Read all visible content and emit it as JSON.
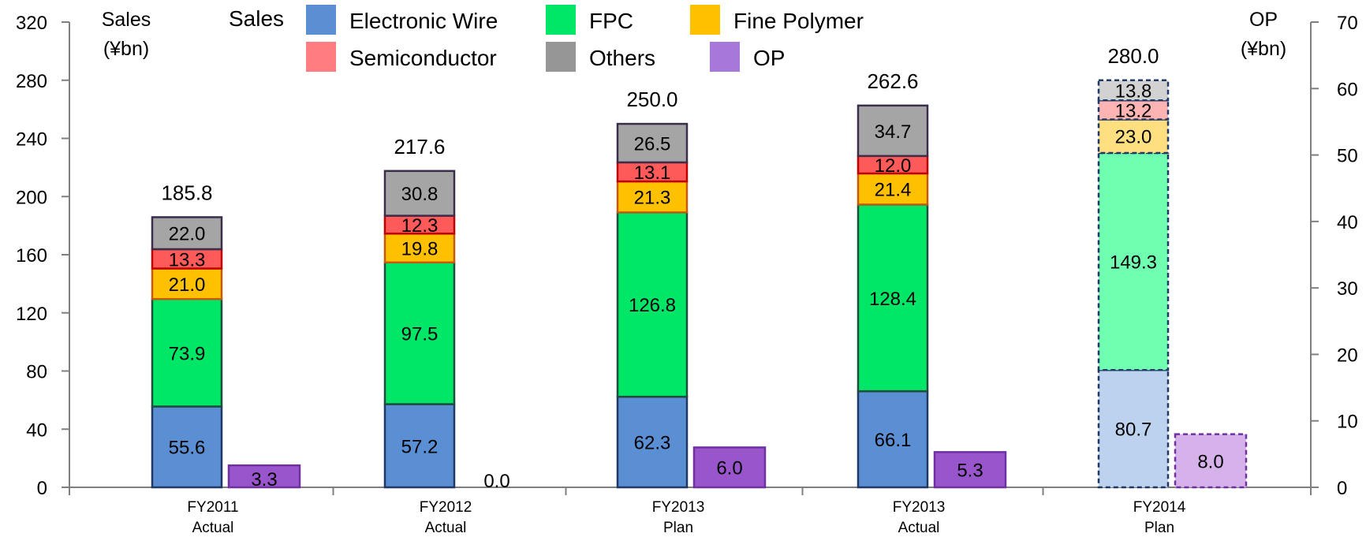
{
  "chart_data": {
    "type": "bar",
    "stacked": true,
    "categories": [
      {
        "line1": "FY2011",
        "line2": "Actual"
      },
      {
        "line1": "FY2012",
        "line2": "Actual"
      },
      {
        "line1": "FY2013",
        "line2": "Plan"
      },
      {
        "line1": "FY2013",
        "line2": "Actual"
      },
      {
        "line1": "FY2014",
        "line2": "Plan"
      }
    ],
    "plan_flags": [
      false,
      false,
      false,
      false,
      true
    ],
    "series": [
      {
        "name": "Electronic Wire",
        "color": "#5a8fd4",
        "plan_color": "#bcd2ee",
        "values": [
          55.6,
          57.2,
          62.3,
          66.1,
          80.7
        ],
        "labels": [
          "55.6",
          "57.2",
          "62.3",
          "66.1",
          "80.7"
        ]
      },
      {
        "name": "FPC",
        "color": "#00e667",
        "plan_color": "#70ffb0",
        "values": [
          73.9,
          97.5,
          126.8,
          128.4,
          149.3
        ],
        "labels": [
          "73.9",
          "97.5",
          "126.8",
          "128.4",
          "149.3"
        ]
      },
      {
        "name": "Fine Polymer",
        "color": "#ffc000",
        "plan_color": "#ffdf80",
        "values": [
          21.0,
          19.8,
          21.3,
          21.4,
          23.0
        ],
        "labels": [
          "21.0",
          "19.8",
          "21.3",
          "21.4",
          "23.0"
        ]
      },
      {
        "name": "Semiconductor",
        "color": "#ff5a5a",
        "plan_color": "#ffb4b4",
        "values": [
          13.3,
          12.3,
          13.1,
          12.0,
          13.2
        ],
        "labels": [
          "13.3",
          "12.3",
          "13.1",
          "12.0",
          "13.2"
        ]
      },
      {
        "name": "Others",
        "color": "#a5a5a5",
        "plan_color": "#d2d2d2",
        "values": [
          22.0,
          30.8,
          26.5,
          34.7,
          13.8
        ],
        "labels": [
          "22.0",
          "30.8",
          "26.5",
          "34.7",
          "13.8"
        ]
      }
    ],
    "totals": [
      "185.8",
      "217.6",
      "250.0",
      "262.6",
      "280.0"
    ],
    "totals_values": [
      185.8,
      217.6,
      250.0,
      262.6,
      280.0
    ],
    "op": {
      "name": "OP",
      "color": "#9955cc",
      "plan_color": "#d5b3ea",
      "values": [
        3.3,
        0.0,
        6.0,
        5.3,
        8.0
      ],
      "labels": [
        "3.3",
        "0.0",
        "6.0",
        "5.3",
        "8.0"
      ]
    },
    "y_left": {
      "title_line1": "Sales",
      "title_line2": "(¥bn)",
      "min": 0,
      "max": 320,
      "step": 40
    },
    "y_right": {
      "title_line1": "OP",
      "title_line2": "(¥bn)",
      "min": 0,
      "max": 70,
      "step": 10
    },
    "legend": {
      "title": "Sales",
      "items": [
        {
          "label": "Electronic Wire",
          "color": "#5a8fd4"
        },
        {
          "label": "FPC",
          "color": "#00e667"
        },
        {
          "label": "Fine Polymer",
          "color": "#ffc000"
        },
        {
          "label": "Semiconductor",
          "color": "#ff7c80"
        },
        {
          "label": "Others",
          "color": "#969696"
        },
        {
          "label": "OP",
          "color": "#a777d9"
        }
      ]
    }
  }
}
